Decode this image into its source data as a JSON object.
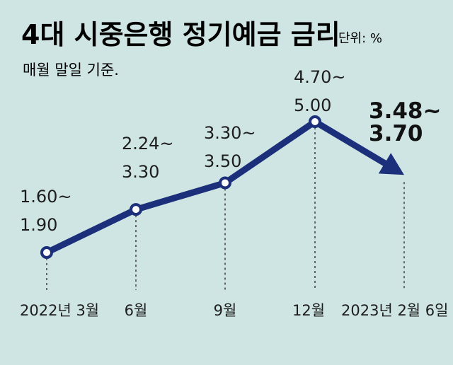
{
  "chart_data": {
    "type": "line",
    "title": "4대 시중은행 정기예금 금리",
    "unit_label": "단위: %",
    "subtitle": "매월 말일 기준.",
    "categories": [
      "2022년 3월",
      "6월",
      "9월",
      "12월",
      "2023년 2월 6일"
    ],
    "series": [
      {
        "low": [
          1.6,
          2.24,
          3.3,
          4.7,
          3.48
        ],
        "high": [
          1.9,
          3.3,
          3.5,
          5.0,
          3.7
        ]
      }
    ],
    "data_labels": [
      {
        "low": "1.60",
        "high": "1.90"
      },
      {
        "low": "2.24",
        "high": "3.30"
      },
      {
        "low": "3.30",
        "high": "3.50"
      },
      {
        "low": "4.70",
        "high": "5.00"
      },
      {
        "low": "3.48",
        "high": "3.70"
      }
    ],
    "range_separator": "~",
    "grid": false,
    "colors": {
      "background": "#cfe5e4",
      "line": "#1c2f7a",
      "text": "#1d1d1d",
      "highlight_text": "#111111"
    }
  }
}
